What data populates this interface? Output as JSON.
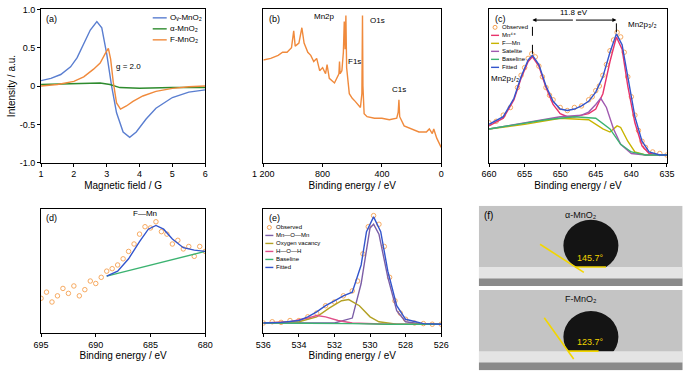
{
  "chart_data": [
    {
      "panel": "(a)",
      "type": "line",
      "x_label": "Magnetic field / G",
      "y_label": "Intensity / a.u.",
      "xlim": [
        1,
        6
      ],
      "xticks": [
        1,
        2,
        3,
        4,
        5,
        6
      ],
      "ylim": [
        -1,
        1
      ],
      "yticks": [
        {
          "value": -1,
          "label": "-1.0"
        },
        -0.5,
        0,
        0.5,
        {
          "value": 1,
          "label": "1.0"
        }
      ],
      "legend": "upper right",
      "annotations": [
        {
          "text": "g = 2.0",
          "x": 3.65,
          "y": 0.25
        }
      ],
      "series": [
        {
          "name": "Oᵥ-MnO₂",
          "color": "#5a7ed0",
          "x": [
            1,
            1.3,
            1.6,
            1.9,
            2.1,
            2.3,
            2.5,
            2.7,
            2.85,
            3.0,
            3.15,
            3.3,
            3.5,
            3.7,
            3.9,
            4.2,
            4.5,
            5.0,
            5.5,
            6.0
          ],
          "values": [
            0.07,
            0.1,
            0.15,
            0.25,
            0.37,
            0.55,
            0.73,
            0.84,
            0.76,
            0.42,
            0.0,
            -0.35,
            -0.6,
            -0.67,
            -0.6,
            -0.43,
            -0.29,
            -0.15,
            -0.08,
            -0.05
          ]
        },
        {
          "name": "α-MnO₂",
          "color": "#2e8b2e",
          "x": [
            1,
            2,
            2.8,
            3.1,
            3.4,
            4,
            5,
            6
          ],
          "values": [
            0.02,
            0.03,
            0.04,
            0.02,
            -0.02,
            -0.03,
            -0.02,
            -0.02
          ]
        },
        {
          "name": "F-MnO₂",
          "color": "#f08a3c",
          "x": [
            1,
            1.5,
            2.0,
            2.3,
            2.6,
            2.8,
            2.95,
            3.05,
            3.12,
            3.2,
            3.3,
            3.42,
            3.6,
            3.8,
            4.1,
            4.5,
            5.0,
            5.5,
            6.0
          ],
          "values": [
            0,
            0.02,
            0.06,
            0.12,
            0.22,
            0.3,
            0.42,
            0.49,
            0.35,
            0.05,
            -0.22,
            -0.3,
            -0.26,
            -0.2,
            -0.13,
            -0.07,
            -0.03,
            -0.01,
            0
          ]
        }
      ]
    },
    {
      "panel": "(b)",
      "type": "line",
      "x_label": "Binding energy / eV",
      "xlim": [
        1200,
        0
      ],
      "xticks": [
        {
          "value": 1200,
          "label": "1 200"
        },
        800,
        400,
        0
      ],
      "ylim": [
        0,
        1
      ],
      "tick_labels": "x",
      "annotations": [
        {
          "text": "Mn2p",
          "x": 790,
          "y": 0.955
        },
        {
          "text": "O1s",
          "x": 430,
          "y": 0.93
        },
        {
          "text": "F1s",
          "x": 585,
          "y": 0.66
        },
        {
          "text": "C1s",
          "x": 285,
          "y": 0.48
        }
      ],
      "series": [
        {
          "color": "#f08a3c",
          "x": [
            1200,
            1150,
            1100,
            1070,
            1040,
            1010,
            995,
            985,
            960,
            940,
            925,
            900,
            880,
            860,
            840,
            820,
            800,
            780,
            770,
            755,
            720,
            690,
            686,
            682,
            670,
            660,
            654,
            648,
            643,
            638,
            620,
            600,
            580,
            560,
            545,
            535,
            531,
            528,
            520,
            500,
            450,
            400,
            350,
            300,
            290,
            285,
            280,
            250,
            200,
            150,
            100,
            80,
            60,
            50,
            30,
            0
          ],
          "values": [
            0.67,
            0.68,
            0.7,
            0.72,
            0.72,
            0.75,
            0.86,
            0.76,
            0.78,
            0.88,
            0.78,
            0.72,
            0.7,
            0.66,
            0.68,
            0.6,
            0.62,
            0.58,
            0.64,
            0.55,
            0.52,
            0.58,
            0.66,
            0.58,
            0.6,
            0.72,
            0.92,
            0.74,
            0.96,
            0.62,
            0.45,
            0.42,
            0.4,
            0.38,
            0.36,
            0.45,
            0.96,
            0.5,
            0.32,
            0.3,
            0.29,
            0.29,
            0.28,
            0.29,
            0.33,
            0.41,
            0.3,
            0.24,
            0.22,
            0.2,
            0.2,
            0.22,
            0.19,
            0.22,
            0.16,
            0.1
          ]
        }
      ]
    },
    {
      "panel": "(c)",
      "type": "line",
      "x_label": "Binding energy / eV",
      "xlim": [
        660,
        635
      ],
      "xticks": [
        660,
        655,
        650,
        645,
        640,
        635
      ],
      "ylim": [
        0,
        1
      ],
      "tick_labels": "x",
      "legend": "upper left",
      "vlines": [
        653.9,
        642.1
      ],
      "annotations": [
        {
          "text": "11.8 eV",
          "x": 648,
          "y": 0.93,
          "span": [
            653.9,
            642.1
          ]
        },
        {
          "text": "Mn2p₁/₂",
          "x": 657.8,
          "y": 0.55
        },
        {
          "text": "Mn2p₃/₂",
          "x": 638.5,
          "y": 0.9
        }
      ],
      "series": [
        {
          "name": "Observed",
          "type": "scatter",
          "marker": "circle-open",
          "color": "#f5a050",
          "x": [
            660,
            659,
            658,
            657,
            656,
            655.5,
            655,
            654.5,
            654,
            653.5,
            653,
            652.5,
            652,
            651.5,
            651,
            650,
            649,
            648,
            647,
            646,
            645.5,
            645,
            644.5,
            644,
            643.5,
            643,
            642.5,
            642,
            641.5,
            641,
            640.5,
            640,
            639.5,
            639,
            638.5,
            638,
            637,
            636,
            635
          ],
          "values": [
            0.26,
            0.27,
            0.31,
            0.36,
            0.49,
            0.57,
            0.62,
            0.68,
            0.71,
            0.69,
            0.63,
            0.56,
            0.49,
            0.44,
            0.41,
            0.36,
            0.34,
            0.36,
            0.37,
            0.41,
            0.43,
            0.47,
            0.5,
            0.57,
            0.64,
            0.73,
            0.8,
            0.85,
            0.82,
            0.72,
            0.56,
            0.43,
            0.31,
            0.21,
            0.14,
            0.1,
            0.07,
            0.06,
            0.05
          ]
        },
        {
          "name": "Mn⁴⁺",
          "color": "#e8336b",
          "x": [
            660,
            658,
            656.5,
            655.5,
            654.5,
            653.9,
            653,
            652,
            651,
            650,
            649,
            648,
            647,
            646,
            645,
            644,
            643,
            642.1,
            641.3,
            640.5,
            639.5,
            638.5,
            637.5,
            636,
            635
          ],
          "values": [
            0.24,
            0.29,
            0.41,
            0.55,
            0.66,
            0.69,
            0.63,
            0.49,
            0.38,
            0.32,
            0.3,
            0.3,
            0.31,
            0.32,
            0.35,
            0.45,
            0.66,
            0.82,
            0.74,
            0.5,
            0.26,
            0.11,
            0.06,
            0.05,
            0.05
          ]
        },
        {
          "name": "F—Mn",
          "color": "#c8b400",
          "x": [
            660,
            655,
            650,
            646,
            644,
            643,
            642,
            641.5,
            640.5,
            639.5,
            638,
            635
          ],
          "values": [
            0.22,
            0.25,
            0.29,
            0.28,
            0.22,
            0.2,
            0.24,
            0.23,
            0.14,
            0.07,
            0.05,
            0.05
          ]
        },
        {
          "name": "Satelite",
          "color": "#a05ab0",
          "x": [
            660,
            650,
            647,
            646,
            645,
            644.3,
            643.5,
            642.5,
            641.5,
            640,
            638,
            635
          ],
          "values": [
            0.22,
            0.3,
            0.31,
            0.33,
            0.38,
            0.42,
            0.36,
            0.22,
            0.12,
            0.06,
            0.05,
            0.05
          ]
        },
        {
          "name": "Baseline",
          "color": "#3cb371",
          "x": [
            660,
            656,
            652,
            648,
            645,
            643,
            641.5,
            640,
            638,
            635
          ],
          "values": [
            0.22,
            0.25,
            0.28,
            0.3,
            0.29,
            0.22,
            0.12,
            0.07,
            0.05,
            0.05
          ]
        },
        {
          "name": "Fitted",
          "color": "#3355cc",
          "x": [
            660,
            658,
            656.5,
            655.5,
            654.5,
            653.9,
            653,
            652,
            651,
            650,
            649,
            648,
            647,
            646,
            645,
            644,
            643,
            642.1,
            641.3,
            640.5,
            639.5,
            638.5,
            637.5,
            636,
            635
          ],
          "values": [
            0.25,
            0.3,
            0.42,
            0.56,
            0.67,
            0.7,
            0.64,
            0.5,
            0.4,
            0.35,
            0.34,
            0.35,
            0.37,
            0.4,
            0.46,
            0.56,
            0.72,
            0.84,
            0.77,
            0.55,
            0.3,
            0.14,
            0.07,
            0.05,
            0.05
          ]
        }
      ]
    },
    {
      "panel": "(d)",
      "type": "line",
      "x_label": "Binding energy / eV",
      "xlim": [
        695,
        680
      ],
      "xticks": [
        695,
        690,
        685,
        680
      ],
      "ylim": [
        0,
        1
      ],
      "tick_labels": "x",
      "annotations": [
        {
          "text": "F—Mn",
          "x": 685.5,
          "y": 0.965
        }
      ],
      "series": [
        {
          "type": "scatter",
          "marker": "circle-open",
          "color": "#f5a050",
          "x": [
            695,
            694.5,
            694,
            693.5,
            693,
            692.5,
            692,
            691.5,
            691,
            690.5,
            690,
            689.5,
            689,
            688.5,
            688,
            687.5,
            687,
            686.5,
            686,
            685.5,
            685,
            684.5,
            684,
            683.5,
            683,
            682.5,
            682,
            681.5,
            681,
            680.5,
            680
          ],
          "values": [
            0.28,
            0.33,
            0.25,
            0.3,
            0.36,
            0.32,
            0.38,
            0.3,
            0.35,
            0.42,
            0.4,
            0.45,
            0.5,
            0.52,
            0.55,
            0.6,
            0.66,
            0.72,
            0.8,
            0.86,
            0.85,
            0.9,
            0.82,
            0.8,
            0.72,
            0.75,
            0.68,
            0.7,
            0.62,
            0.7,
            0.66
          ]
        },
        {
          "color": "#3cb371",
          "x": [
            689,
            680
          ],
          "values": [
            0.46,
            0.66
          ]
        },
        {
          "color": "#3355cc",
          "x": [
            689,
            688,
            687,
            686,
            685.2,
            684.5,
            683.8,
            683,
            682,
            681,
            680
          ],
          "values": [
            0.46,
            0.5,
            0.6,
            0.74,
            0.84,
            0.87,
            0.84,
            0.76,
            0.69,
            0.67,
            0.66
          ]
        }
      ]
    },
    {
      "panel": "(e)",
      "type": "line",
      "x_label": "Binding energy / eV",
      "xlim": [
        536,
        526
      ],
      "xticks": [
        536,
        534,
        532,
        530,
        528,
        526
      ],
      "ylim": [
        0,
        1
      ],
      "tick_labels": "x",
      "legend": "upper left",
      "series": [
        {
          "name": "Observed",
          "type": "scatter",
          "marker": "circle-open",
          "color": "#f5a050",
          "x": [
            536,
            535.5,
            535,
            534.5,
            534,
            533.5,
            533,
            532.5,
            532,
            531.5,
            531,
            530.7,
            530.4,
            530.1,
            529.8,
            529.5,
            529.2,
            528.9,
            528.6,
            528.3,
            528,
            527.5,
            527,
            526.5,
            526
          ],
          "values": [
            0.08,
            0.09,
            0.085,
            0.1,
            0.1,
            0.13,
            0.16,
            0.22,
            0.25,
            0.3,
            0.34,
            0.42,
            0.64,
            0.86,
            0.95,
            0.88,
            0.7,
            0.45,
            0.26,
            0.16,
            0.11,
            0.08,
            0.075,
            0.07,
            0.07
          ]
        },
        {
          "name": "Mn—O—Mn",
          "color": "#7b5ea7",
          "x": [
            536,
            532,
            531,
            530.5,
            530,
            529.8,
            529.5,
            529,
            528.5,
            528,
            527,
            526
          ],
          "values": [
            0.08,
            0.08,
            0.12,
            0.4,
            0.85,
            0.88,
            0.8,
            0.45,
            0.18,
            0.09,
            0.07,
            0.07
          ]
        },
        {
          "name": "Oxygen vacancy",
          "color": "#b3a125",
          "x": [
            536,
            534,
            533,
            532.3,
            531.6,
            531.2,
            530.6,
            530,
            529.5,
            528.5,
            526
          ],
          "values": [
            0.08,
            0.09,
            0.13,
            0.2,
            0.26,
            0.27,
            0.22,
            0.13,
            0.09,
            0.07,
            0.07
          ]
        },
        {
          "name": "H—O—H",
          "color": "#e0508a",
          "x": [
            536,
            534.5,
            533.5,
            533,
            532.5,
            531.8,
            531,
            529,
            526
          ],
          "values": [
            0.08,
            0.09,
            0.12,
            0.14,
            0.13,
            0.1,
            0.08,
            0.07,
            0.07
          ]
        },
        {
          "name": "Baseline",
          "color": "#3cb371",
          "x": [
            536,
            533,
            531,
            529,
            526
          ],
          "values": [
            0.08,
            0.08,
            0.075,
            0.07,
            0.07
          ]
        },
        {
          "name": "Fitted",
          "color": "#3355cc",
          "x": [
            536,
            535,
            534,
            533.5,
            533,
            532.5,
            532,
            531.5,
            531,
            530.5,
            530.2,
            529.8,
            529.4,
            529,
            528.5,
            528,
            527,
            526
          ],
          "values": [
            0.08,
            0.085,
            0.1,
            0.13,
            0.17,
            0.22,
            0.26,
            0.3,
            0.33,
            0.55,
            0.82,
            0.94,
            0.82,
            0.5,
            0.22,
            0.11,
            0.075,
            0.07
          ]
        }
      ]
    },
    {
      "panel": "(f)",
      "type": "image",
      "samples": [
        {
          "name": "α-MnO₂",
          "contact_angle": 145.7,
          "label": "145.7°"
        },
        {
          "name": "F-MnO₂",
          "contact_angle": 123.7,
          "label": "123.7°"
        }
      ]
    }
  ]
}
